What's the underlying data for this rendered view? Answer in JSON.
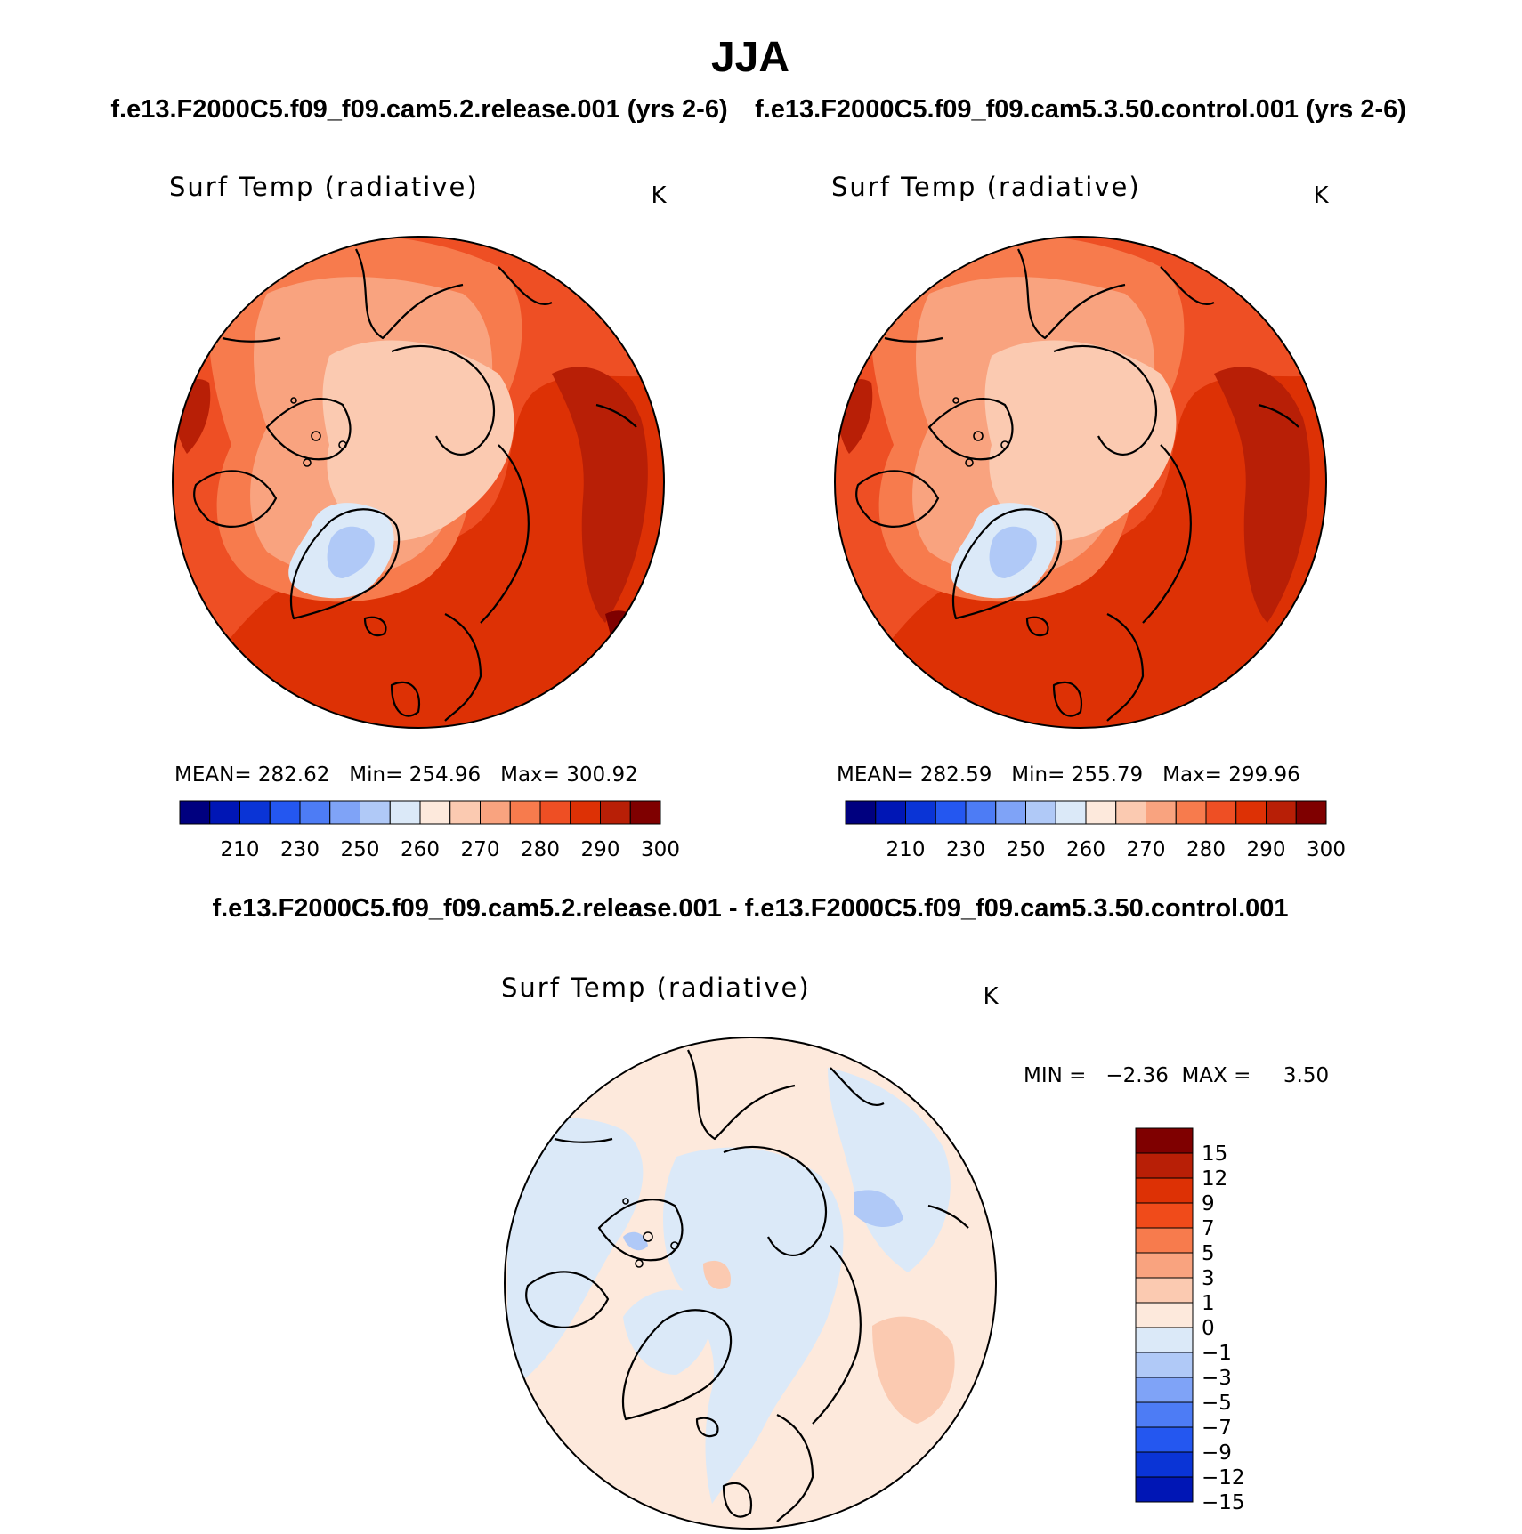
{
  "page": {
    "title": "JJA",
    "case1_subtitle": "f.e13.F2000C5.f09_f09.cam5.2.release.001 (yrs 2-6)",
    "case2_subtitle": "f.e13.F2000C5.f09_f09.cam5.3.50.control.001 (yrs 2-6)",
    "diff_title": "f.e13.F2000C5.f09_f09.cam5.2.release.001 - f.e13.F2000C5.f09_f09.cam5.3.50.control.001"
  },
  "panels": [
    {
      "id": "case1",
      "variable": "Surf Temp (radiative)",
      "units": "K",
      "stats_text": "MEAN= 282.62   Min= 254.96   Max= 300.92",
      "colorbar_labels": [
        "210",
        "230",
        "250",
        "260",
        "270",
        "280",
        "290",
        "300"
      ]
    },
    {
      "id": "case2",
      "variable": "Surf Temp (radiative)",
      "units": "K",
      "stats_text": "MEAN= 282.59   Min= 255.79   Max= 299.96",
      "colorbar_labels": [
        "210",
        "230",
        "250",
        "260",
        "270",
        "280",
        "290",
        "300"
      ]
    },
    {
      "id": "diff",
      "variable": "Surf Temp (radiative)",
      "units": "K",
      "minmax_text": "MIN =   −2.36  MAX =     3.50",
      "colorbar_labels": [
        "15",
        "12",
        "9",
        "7",
        "5",
        "3",
        "1",
        "0",
        "−1",
        "−3",
        "−5",
        "−7",
        "−9",
        "−12",
        "−15"
      ]
    }
  ],
  "colors": {
    "abs_scale": [
      "#00007f",
      "#0016b5",
      "#0a34d6",
      "#2457f0",
      "#4d7cf5",
      "#7fa3f7",
      "#b0c9f7",
      "#dbe9f8",
      "#fde9dc",
      "#fbcab1",
      "#f9a37f",
      "#f77b4d",
      "#ee4f24",
      "#dd3105",
      "#b81f06",
      "#7f0000"
    ],
    "diff_scale": [
      "#7f0000",
      "#b81f06",
      "#dd3105",
      "#f04b1a",
      "#f77b4d",
      "#f9a37f",
      "#fbcab1",
      "#fde9dc",
      "#dbe9f8",
      "#b0c9f7",
      "#7fa3f7",
      "#4d7cf5",
      "#2457f0",
      "#0a34d6",
      "#0016b5"
    ]
  }
}
